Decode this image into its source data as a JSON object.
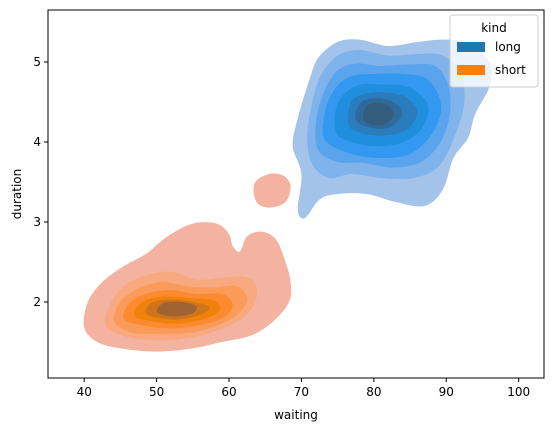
{
  "chart_data": {
    "type": "kde-filled-contour",
    "xlabel": "waiting",
    "ylabel": "duration",
    "xlim": [
      35,
      103.5
    ],
    "ylim": [
      1.05,
      5.65
    ],
    "xticks": [
      40,
      50,
      60,
      70,
      80,
      90,
      100
    ],
    "yticks": [
      2,
      3,
      4,
      5
    ],
    "grid": false,
    "legend": {
      "title": "kind",
      "position": "top-right",
      "entries": [
        {
          "label": "long",
          "color": "#1f77b4"
        },
        {
          "label": "short",
          "color": "#ff7f0e"
        }
      ]
    },
    "series": [
      {
        "name": "long",
        "color": "#1f77b4",
        "peak": {
          "x": 80.5,
          "y": 4.38
        },
        "levels": [
          {
            "fill": "#a3c3ea",
            "polygon": [
              [
                69.5,
                3.15
              ],
              [
                70,
                3.6
              ],
              [
                68.8,
                3.95
              ],
              [
                69.5,
                4.3
              ],
              [
                71,
                4.75
              ],
              [
                72.3,
                5.05
              ],
              [
                75,
                5.25
              ],
              [
                78,
                5.28
              ],
              [
                82,
                5.2
              ],
              [
                86,
                5.25
              ],
              [
                90,
                5.28
              ],
              [
                93,
                5.22
              ],
              [
                96,
                5.0
              ],
              [
                96,
                4.7
              ],
              [
                94,
                4.35
              ],
              [
                93,
                4.05
              ],
              [
                91,
                3.8
              ],
              [
                89.5,
                3.4
              ],
              [
                87,
                3.2
              ],
              [
                83,
                3.25
              ],
              [
                79,
                3.35
              ],
              [
                75,
                3.35
              ],
              [
                72.5,
                3.28
              ],
              [
                70.5,
                3.05
              ]
            ]
          },
          {
            "fill": "#7fb3ec",
            "polygon": [
              [
                71.5,
                3.72
              ],
              [
                70.8,
                4.05
              ],
              [
                71.5,
                4.5
              ],
              [
                72.8,
                4.85
              ],
              [
                75,
                5.08
              ],
              [
                78,
                5.15
              ],
              [
                82,
                5.08
              ],
              [
                86,
                5.1
              ],
              [
                89.5,
                5.08
              ],
              [
                92,
                4.85
              ],
              [
                92.5,
                4.5
              ],
              [
                91.3,
                4.1
              ],
              [
                89,
                3.7
              ],
              [
                85.5,
                3.55
              ],
              [
                81,
                3.55
              ],
              [
                77,
                3.6
              ],
              [
                73.8,
                3.55
              ]
            ]
          },
          {
            "fill": "#5aa4ee",
            "polygon": [
              [
                72.3,
                3.9
              ],
              [
                72,
                4.25
              ],
              [
                73,
                4.6
              ],
              [
                74.8,
                4.88
              ],
              [
                77.5,
                4.98
              ],
              [
                81,
                4.95
              ],
              [
                85,
                4.97
              ],
              [
                88.5,
                4.95
              ],
              [
                90.3,
                4.7
              ],
              [
                90.5,
                4.35
              ],
              [
                89.2,
                4.0
              ],
              [
                86.5,
                3.75
              ],
              [
                82.5,
                3.68
              ],
              [
                78.5,
                3.74
              ],
              [
                75,
                3.75
              ]
            ]
          },
          {
            "fill": "#3398ef",
            "polygon": [
              [
                73.3,
                4.02
              ],
              [
                73.2,
                4.35
              ],
              [
                74.5,
                4.65
              ],
              [
                76.8,
                4.82
              ],
              [
                80,
                4.85
              ],
              [
                84,
                4.85
              ],
              [
                87.5,
                4.78
              ],
              [
                89.3,
                4.45
              ],
              [
                88,
                4.1
              ],
              [
                85,
                3.85
              ],
              [
                81,
                3.8
              ],
              [
                77,
                3.85
              ]
            ]
          },
          {
            "fill": "#1f8fdd",
            "polygon": [
              [
                74.8,
                4.12
              ],
              [
                75,
                4.48
              ],
              [
                77.5,
                4.7
              ],
              [
                81,
                4.72
              ],
              [
                85,
                4.68
              ],
              [
                87.5,
                4.45
              ],
              [
                86.5,
                4.15
              ],
              [
                83.5,
                3.98
              ],
              [
                80,
                3.95
              ],
              [
                77,
                4.0
              ]
            ]
          },
          {
            "fill": "#2a7cbc",
            "polygon": [
              [
                76.5,
                4.22
              ],
              [
                77,
                4.52
              ],
              [
                80,
                4.62
              ],
              [
                84,
                4.58
              ],
              [
                86,
                4.38
              ],
              [
                84.5,
                4.15
              ],
              [
                81,
                4.08
              ],
              [
                78,
                4.12
              ]
            ]
          },
          {
            "fill": "#2f6a9a",
            "polygon": [
              [
                77.5,
                4.28
              ],
              [
                78.3,
                4.5
              ],
              [
                81,
                4.55
              ],
              [
                83.5,
                4.45
              ],
              [
                83.7,
                4.3
              ],
              [
                82,
                4.18
              ],
              [
                79.5,
                4.18
              ]
            ]
          },
          {
            "fill": "#345d7d",
            "polygon": [
              [
                78.5,
                4.3
              ],
              [
                79.3,
                4.47
              ],
              [
                81.5,
                4.48
              ],
              [
                82.8,
                4.35
              ],
              [
                81.5,
                4.22
              ],
              [
                79.5,
                4.22
              ]
            ]
          }
        ]
      },
      {
        "name": "short",
        "color": "#ff7f0e",
        "peak": {
          "x": 53.5,
          "y": 1.9
        },
        "levels": [
          {
            "fill": "#f3b3a0",
            "polygon": [
              [
                40,
                1.68
              ],
              [
                40.5,
                2.0
              ],
              [
                42.5,
                2.25
              ],
              [
                45.5,
                2.45
              ],
              [
                48.5,
                2.6
              ],
              [
                51.5,
                2.82
              ],
              [
                55,
                2.98
              ],
              [
                58.3,
                2.98
              ],
              [
                60,
                2.85
              ],
              [
                60.5,
                2.7
              ],
              [
                61.5,
                2.63
              ],
              [
                62.5,
                2.82
              ],
              [
                64.5,
                2.88
              ],
              [
                66.5,
                2.78
              ],
              [
                67.8,
                2.5
              ],
              [
                68.5,
                2.25
              ],
              [
                68.3,
                2.0
              ],
              [
                66,
                1.75
              ],
              [
                63,
                1.58
              ],
              [
                59,
                1.5
              ],
              [
                55,
                1.42
              ],
              [
                50,
                1.38
              ],
              [
                45,
                1.42
              ],
              [
                41.8,
                1.5
              ]
            ]
          },
          {
            "fill": "#f3b3a0",
            "polygon": [
              [
                63.8,
                3.25
              ],
              [
                63.5,
                3.48
              ],
              [
                65.5,
                3.6
              ],
              [
                67.5,
                3.58
              ],
              [
                68.5,
                3.45
              ],
              [
                67.8,
                3.25
              ],
              [
                65.5,
                3.18
              ]
            ]
          },
          {
            "fill": "#f8a97f",
            "polygon": [
              [
                43,
                1.7
              ],
              [
                43.5,
                1.95
              ],
              [
                45.5,
                2.2
              ],
              [
                48.5,
                2.33
              ],
              [
                52,
                2.38
              ],
              [
                55.5,
                2.28
              ],
              [
                58.5,
                2.3
              ],
              [
                61.8,
                2.32
              ],
              [
                63.5,
                2.25
              ],
              [
                63.8,
                2.05
              ],
              [
                62.5,
                1.85
              ],
              [
                60,
                1.7
              ],
              [
                56,
                1.58
              ],
              [
                51.5,
                1.52
              ],
              [
                46.5,
                1.55
              ]
            ]
          },
          {
            "fill": "#fb9b5a",
            "polygon": [
              [
                44.2,
                1.75
              ],
              [
                44.8,
                1.98
              ],
              [
                47,
                2.15
              ],
              [
                50.5,
                2.25
              ],
              [
                54,
                2.2
              ],
              [
                57.5,
                2.18
              ],
              [
                61,
                2.2
              ],
              [
                62.5,
                2.05
              ],
              [
                61.5,
                1.87
              ],
              [
                59,
                1.73
              ],
              [
                55,
                1.62
              ],
              [
                50.5,
                1.6
              ],
              [
                46.5,
                1.62
              ]
            ]
          },
          {
            "fill": "#fd8a2e",
            "polygon": [
              [
                45.5,
                1.78
              ],
              [
                46.2,
                1.98
              ],
              [
                48.5,
                2.1
              ],
              [
                52,
                2.15
              ],
              [
                55.5,
                2.1
              ],
              [
                59,
                2.1
              ],
              [
                60.5,
                1.98
              ],
              [
                59.5,
                1.82
              ],
              [
                56.5,
                1.72
              ],
              [
                52.5,
                1.67
              ],
              [
                48.5,
                1.7
              ]
            ]
          },
          {
            "fill": "#f0820c",
            "polygon": [
              [
                47,
                1.82
              ],
              [
                48,
                2.0
              ],
              [
                51,
                2.07
              ],
              [
                54.5,
                2.05
              ],
              [
                58,
                2.02
              ],
              [
                58.7,
                1.9
              ],
              [
                57,
                1.8
              ],
              [
                53.5,
                1.73
              ],
              [
                50,
                1.75
              ]
            ]
          },
          {
            "fill": "#cf741b",
            "polygon": [
              [
                48.5,
                1.86
              ],
              [
                49.5,
                2.0
              ],
              [
                52.5,
                2.03
              ],
              [
                55.5,
                1.99
              ],
              [
                57.3,
                1.93
              ],
              [
                56,
                1.84
              ],
              [
                53,
                1.78
              ],
              [
                50.5,
                1.8
              ]
            ]
          },
          {
            "fill": "#a06332",
            "polygon": [
              [
                50,
                1.88
              ],
              [
                51,
                1.99
              ],
              [
                53.5,
                2.0
              ],
              [
                55.5,
                1.95
              ],
              [
                55,
                1.86
              ],
              [
                53,
                1.82
              ],
              [
                51.3,
                1.83
              ]
            ]
          }
        ]
      }
    ]
  }
}
